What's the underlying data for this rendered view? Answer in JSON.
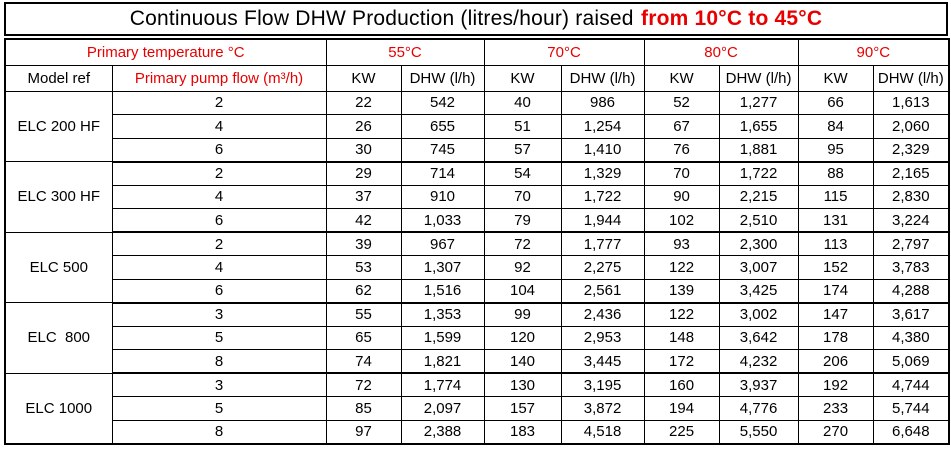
{
  "colors": {
    "accent_red": "#e80000",
    "border": "#000000",
    "background": "#ffffff"
  },
  "chart_data": {
    "type": "table",
    "title": "Continuous Flow DHW Production (litres/hour) raised from 10°C to 45°C",
    "title_black": "Continuous Flow DHW Production (litres/hour) raised",
    "title_red": "from 10°C to 45°C",
    "header": {
      "primary_temperature_label": "Primary temperature °C",
      "temperatures": [
        "55°C",
        "70°C",
        "80°C",
        "90°C"
      ],
      "model_ref_label": "Model ref",
      "pump_flow_label": "Primary pump flow (m³/h)",
      "kw_label": "KW",
      "dhw_label": "DHW (l/h)"
    },
    "column_order_per_temperature": [
      "KW",
      "DHW (l/h)"
    ],
    "groups": [
      {
        "model": "ELC 200 HF",
        "rows": [
          {
            "flow": "2",
            "values": [
              "22",
              "542",
              "40",
              "986",
              "52",
              "1,277",
              "66",
              "1,613"
            ]
          },
          {
            "flow": "4",
            "values": [
              "26",
              "655",
              "51",
              "1,254",
              "67",
              "1,655",
              "84",
              "2,060"
            ]
          },
          {
            "flow": "6",
            "values": [
              "30",
              "745",
              "57",
              "1,410",
              "76",
              "1,881",
              "95",
              "2,329"
            ]
          }
        ]
      },
      {
        "model": "ELC 300 HF",
        "rows": [
          {
            "flow": "2",
            "values": [
              "29",
              "714",
              "54",
              "1,329",
              "70",
              "1,722",
              "88",
              "2,165"
            ]
          },
          {
            "flow": "4",
            "values": [
              "37",
              "910",
              "70",
              "1,722",
              "90",
              "2,215",
              "115",
              "2,830"
            ]
          },
          {
            "flow": "6",
            "values": [
              "42",
              "1,033",
              "79",
              "1,944",
              "102",
              "2,510",
              "131",
              "3,224"
            ]
          }
        ]
      },
      {
        "model": "ELC 500",
        "rows": [
          {
            "flow": "2",
            "values": [
              "39",
              "967",
              "72",
              "1,777",
              "93",
              "2,300",
              "113",
              "2,797"
            ]
          },
          {
            "flow": "4",
            "values": [
              "53",
              "1,307",
              "92",
              "2,275",
              "122",
              "3,007",
              "152",
              "3,783"
            ]
          },
          {
            "flow": "6",
            "values": [
              "62",
              "1,516",
              "104",
              "2,561",
              "139",
              "3,425",
              "174",
              "4,288"
            ]
          }
        ]
      },
      {
        "model": "ELC  800",
        "rows": [
          {
            "flow": "3",
            "values": [
              "55",
              "1,353",
              "99",
              "2,436",
              "122",
              "3,002",
              "147",
              "3,617"
            ]
          },
          {
            "flow": "5",
            "values": [
              "65",
              "1,599",
              "120",
              "2,953",
              "148",
              "3,642",
              "178",
              "4,380"
            ]
          },
          {
            "flow": "8",
            "values": [
              "74",
              "1,821",
              "140",
              "3,445",
              "172",
              "4,232",
              "206",
              "5,069"
            ]
          }
        ]
      },
      {
        "model": "ELC 1000",
        "rows": [
          {
            "flow": "3",
            "values": [
              "72",
              "1,774",
              "130",
              "3,195",
              "160",
              "3,937",
              "192",
              "4,744"
            ]
          },
          {
            "flow": "5",
            "values": [
              "85",
              "2,097",
              "157",
              "3,872",
              "194",
              "4,776",
              "233",
              "5,744"
            ]
          },
          {
            "flow": "8",
            "values": [
              "97",
              "2,388",
              "183",
              "4,518",
              "225",
              "5,550",
              "270",
              "6,648"
            ]
          }
        ]
      }
    ]
  }
}
